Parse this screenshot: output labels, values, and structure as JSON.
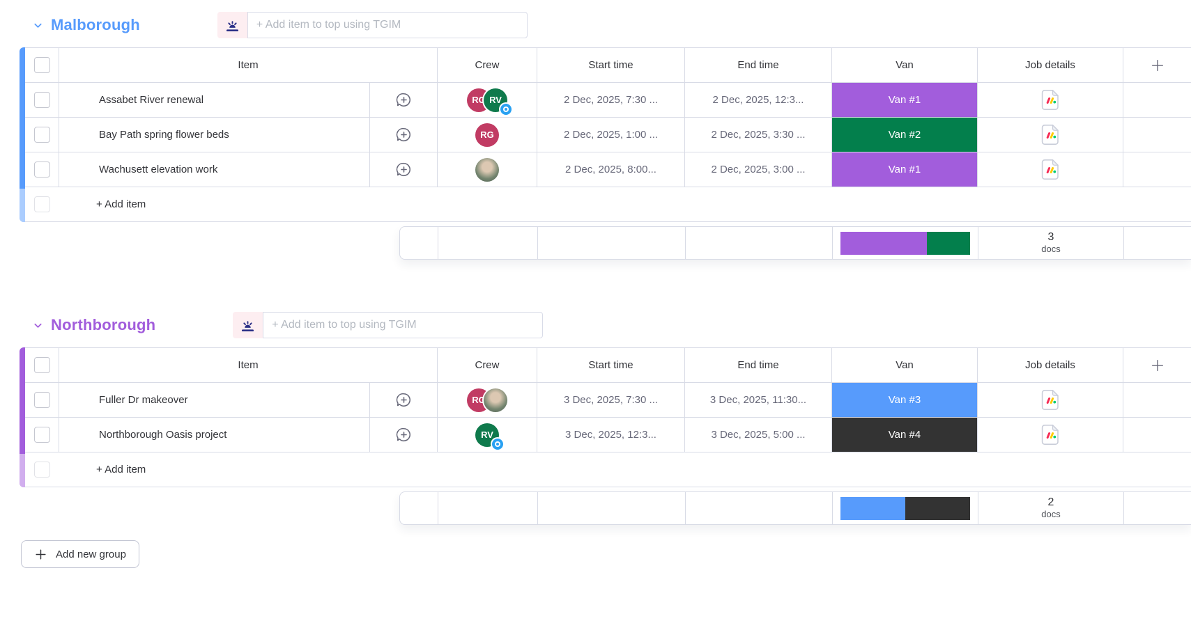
{
  "board": {
    "columns": [
      "Item",
      "Crew",
      "Start time",
      "End time",
      "Van",
      "Job details"
    ],
    "add_new_group_label": "Add new group",
    "icons": {
      "chevron": "chevron-down",
      "tgim": "sunrise",
      "chat": "speech-bubble-plus",
      "job_details": "monday-doc",
      "plus_column": "plus",
      "viewer_badge": "blue-eye-dot"
    },
    "colors": {
      "border": "#d8dbe6",
      "doc_red": "#f62b54",
      "doc_yellow": "#ffcb00",
      "doc_green": "#00ca72",
      "tgim_bg": "#fdeef1",
      "tgim_glyph": "#2b3087"
    },
    "groups": [
      {
        "name": "Malborough",
        "color": "#579bfc",
        "add_placeholder": "+ Add item to top using TGIM",
        "add_item_label": "+ Add item",
        "rows": [
          {
            "item": "Assabet River renewal",
            "crew": [
              {
                "kind": "initials",
                "initials": "RG",
                "color": "#c13b63"
              },
              {
                "kind": "initials",
                "initials": "RV",
                "color": "#0f7a4c",
                "badge": true
              }
            ],
            "start": "2 Dec, 2025, 7:30 ...",
            "end": "2 Dec, 2025, 12:3...",
            "van": "Van #1",
            "van_color": "#a25ddc"
          },
          {
            "item": "Bay Path spring flower beds",
            "crew": [
              {
                "kind": "initials",
                "initials": "RG",
                "color": "#c13b63"
              }
            ],
            "start": "2 Dec, 2025, 1:00 ...",
            "end": "2 Dec, 2025, 3:30 ...",
            "van": "Van #2",
            "van_color": "#037f4c"
          },
          {
            "item": "Wachusett elevation work",
            "crew": [
              {
                "kind": "photo"
              }
            ],
            "start": "2 Dec, 2025, 8:00...",
            "end": "2 Dec, 2025, 3:00 ...",
            "van": "Van #1",
            "van_color": "#a25ddc"
          }
        ],
        "summary": {
          "docs_count": "3",
          "docs_label": "docs",
          "van_distribution": [
            {
              "color": "#a25ddc",
              "fraction": 2
            },
            {
              "color": "#037f4c",
              "fraction": 1
            }
          ]
        }
      },
      {
        "name": "Northborough",
        "color": "#a25ddc",
        "add_placeholder": "+ Add item to top using TGIM",
        "add_item_label": "+ Add item",
        "rows": [
          {
            "item": "Fuller Dr makeover",
            "crew": [
              {
                "kind": "initials",
                "initials": "RG",
                "color": "#c13b63"
              },
              {
                "kind": "photo"
              }
            ],
            "start": "3 Dec, 2025, 7:30 ...",
            "end": "3 Dec, 2025, 11:30...",
            "van": "Van #3",
            "van_color": "#579bfc"
          },
          {
            "item": "Northborough Oasis project",
            "crew": [
              {
                "kind": "initials",
                "initials": "RV",
                "color": "#0f7a4c",
                "badge": true
              }
            ],
            "start": "3 Dec, 2025, 12:3...",
            "end": "3 Dec, 2025, 5:00 ...",
            "van": "Van #4",
            "van_color": "#333333"
          }
        ],
        "summary": {
          "docs_count": "2",
          "docs_label": "docs",
          "van_distribution": [
            {
              "color": "#579bfc",
              "fraction": 1
            },
            {
              "color": "#333333",
              "fraction": 1
            }
          ]
        }
      }
    ]
  }
}
